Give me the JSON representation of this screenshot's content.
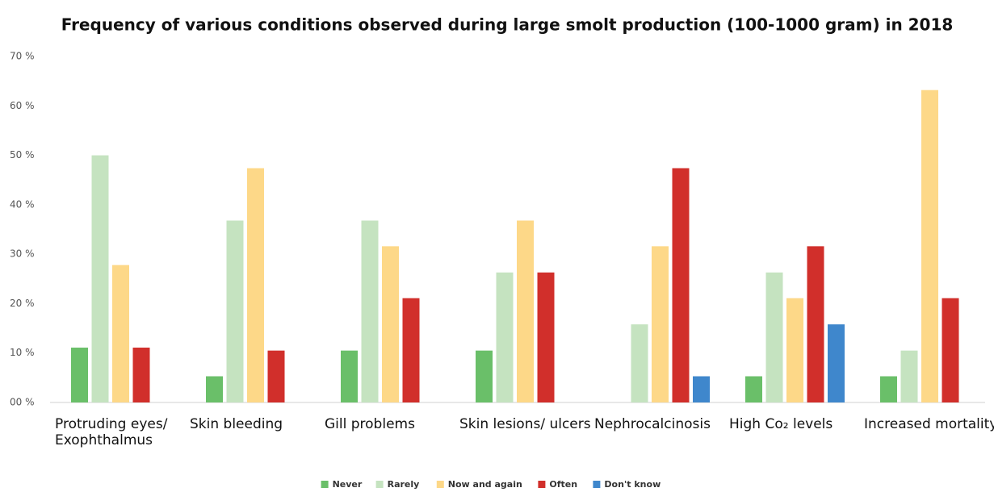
{
  "chart_data": {
    "type": "bar",
    "title": "Frequency of various conditions observed during large smolt production (100-1000 gram) in 2018",
    "categories": [
      "Protruding eyes/ Exophthalmus",
      "Skin bleeding",
      "Gill problems",
      "Skin lesions/ ulcers",
      "Nephrocalcinosis",
      "High Co₂ levels",
      "Increased mortality"
    ],
    "series": [
      {
        "name": "Never",
        "color": "#6abf69",
        "values": [
          11.1,
          5.3,
          10.5,
          10.5,
          0,
          5.3,
          5.3
        ]
      },
      {
        "name": "Rarely",
        "color": "#c5e3c0",
        "values": [
          50,
          36.8,
          36.8,
          26.3,
          15.8,
          26.3,
          10.5
        ]
      },
      {
        "name": "Now and again",
        "color": "#fdd888",
        "values": [
          27.8,
          47.4,
          31.6,
          36.8,
          31.6,
          21.1,
          63.2
        ]
      },
      {
        "name": "Often",
        "color": "#d12f2b",
        "values": [
          11.1,
          10.5,
          21.1,
          26.3,
          47.4,
          31.6,
          21.1
        ]
      },
      {
        "name": "Don't know",
        "color": "#3f87cc",
        "values": [
          0,
          0,
          0,
          0,
          5.3,
          15.8,
          0
        ]
      }
    ],
    "ylim": [
      0,
      70
    ],
    "yticks": [
      {
        "value": 0,
        "label": "00 %"
      },
      {
        "value": 10,
        "label": "10 %"
      },
      {
        "value": 20,
        "label": "20 %"
      },
      {
        "value": 30,
        "label": "30 %"
      },
      {
        "value": 40,
        "label": "40 %"
      },
      {
        "value": 50,
        "label": "50 %"
      },
      {
        "value": 60,
        "label": "60 %"
      },
      {
        "value": 70,
        "label": "70 %"
      }
    ],
    "grid": false,
    "legend": "bottom"
  }
}
